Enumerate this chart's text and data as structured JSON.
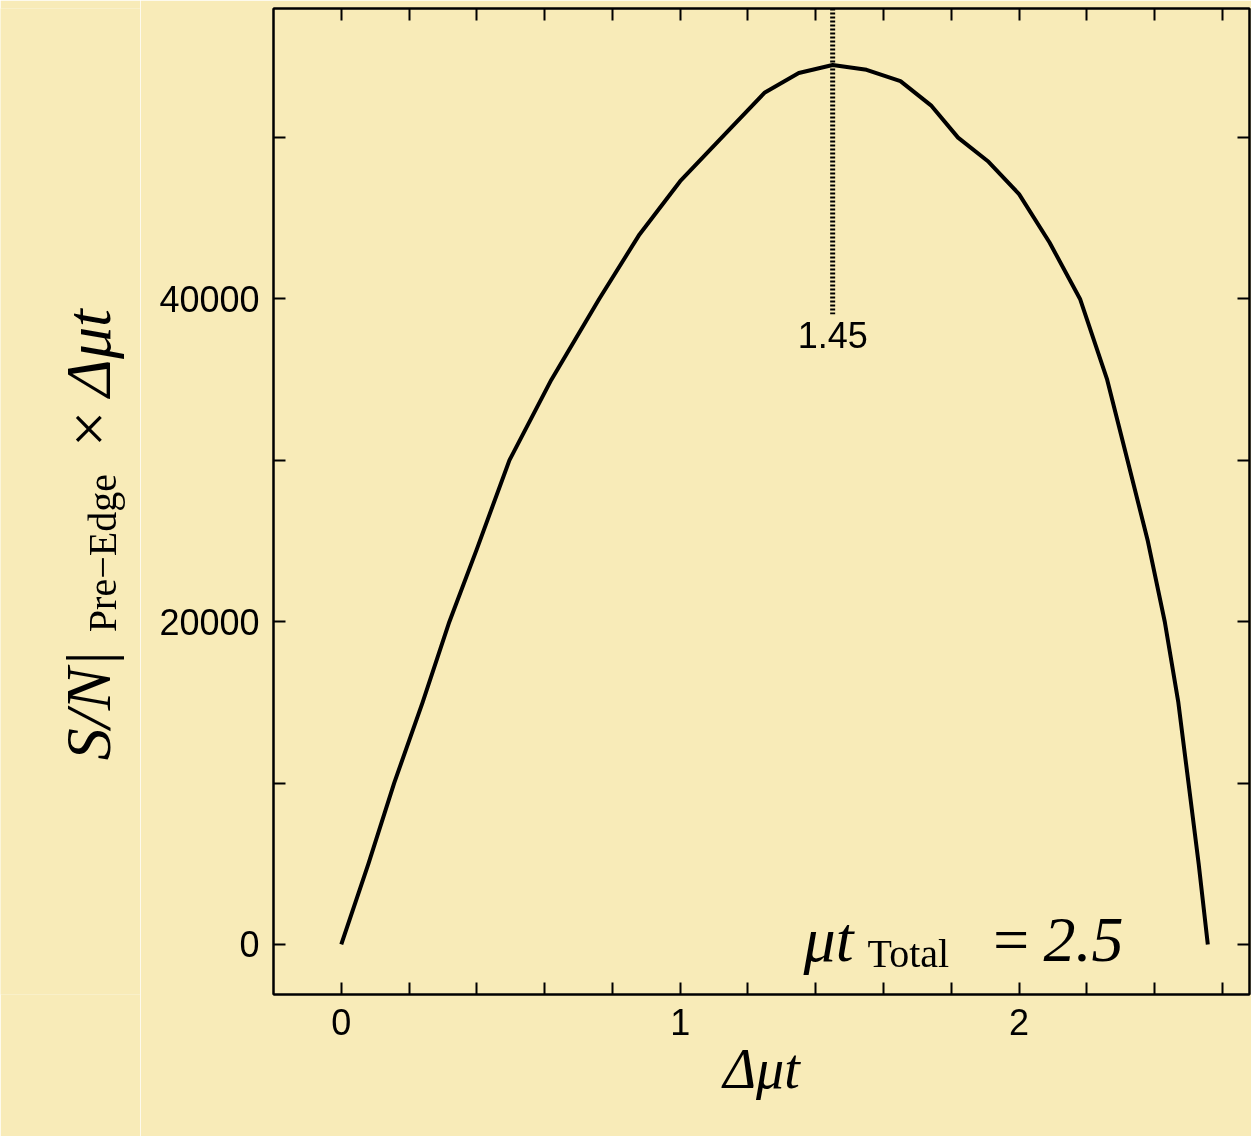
{
  "chart_data": {
    "type": "line",
    "xlabel": "Δμt",
    "ylabel": "S/N|$_{Pre−Edge}$ × Δμt",
    "x": [
      0,
      0.08,
      0.156,
      0.24,
      0.319,
      0.4,
      0.496,
      0.62,
      0.761,
      0.88,
      1.0,
      1.145,
      1.25,
      1.35,
      1.45,
      1.55,
      1.65,
      1.74,
      1.82,
      1.91,
      2.0,
      2.09,
      2.18,
      2.26,
      2.32,
      2.38,
      2.43,
      2.47,
      2.5,
      2.53,
      2.557
    ],
    "series": [
      {
        "color": "#000000",
        "values": [
          0,
          5000,
          10000,
          15000,
          20000,
          24500,
          30000,
          35000,
          40000,
          44000,
          47300,
          50500,
          52800,
          54000,
          54500,
          54200,
          53500,
          52000,
          50000,
          48500,
          46500,
          43500,
          40000,
          35000,
          30000,
          25000,
          20000,
          15000,
          10000,
          5000,
          0
        ]
      }
    ],
    "xlim": [
      -0.2,
      2.68
    ],
    "ylim": [
      -3100,
      58000
    ],
    "xticks": [
      0,
      {
        "value": 0.2,
        "label": null
      },
      {
        "value": 0.4,
        "label": null
      },
      {
        "value": 0.6,
        "label": null
      },
      {
        "value": 0.8,
        "label": null
      },
      1,
      {
        "value": 1.2,
        "label": null
      },
      {
        "value": 1.4,
        "label": null
      },
      {
        "value": 1.6,
        "label": null
      },
      {
        "value": 1.8,
        "label": null
      },
      2,
      {
        "value": 2.2,
        "label": null
      },
      {
        "value": 2.4,
        "label": null
      },
      {
        "value": 2.6,
        "label": null
      }
    ],
    "yticks": [
      0,
      {
        "value": 10000,
        "label": null
      },
      20000,
      {
        "value": 30000,
        "label": null
      },
      40000,
      {
        "value": 50000,
        "label": null
      }
    ],
    "ref_lines": [
      {
        "axis": "x",
        "value": 1.45,
        "label": "1.45",
        "line_style": "dotted"
      }
    ],
    "annotations": [
      "μt$_{Total}$ = 2.5"
    ],
    "grid": false,
    "marker": "none",
    "line_style": "solid"
  }
}
